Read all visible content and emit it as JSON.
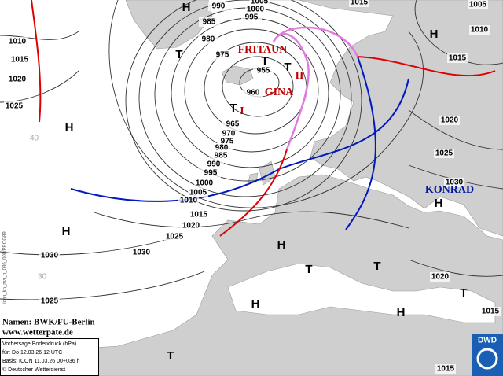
{
  "isobar_labels": [
    990,
    1005,
    1000,
    995,
    985,
    980,
    975,
    955,
    960,
    965,
    970,
    975,
    980,
    985,
    990,
    995,
    1000,
    1005,
    1010,
    1015,
    1020,
    1025,
    1030,
    1030,
    1025,
    1010,
    1015,
    1020,
    1025,
    1015,
    1005,
    1010,
    1015,
    1020,
    1025,
    1030,
    1020,
    1015,
    1015
  ],
  "pressure_centers": [
    "H",
    "H",
    "T",
    "T",
    "T",
    "T",
    "H",
    "H",
    "H",
    "T",
    "T",
    "H",
    "T",
    "H",
    "H",
    "T"
  ],
  "system_names": [
    "FRITAUN",
    "GINA",
    "KONRAD"
  ],
  "front_numbers": [
    "I",
    "II"
  ],
  "latitude_labels": [
    40,
    30
  ],
  "credits": {
    "names": "Namen: BWK/FU-Berlin",
    "website": "www.wetterpate.de"
  },
  "info_box": {
    "title": "Vorhersage Bodendruck (hPa)",
    "valid": "für:  Do  12.03.26  12 UTC",
    "base": "Basis: ICON  11.03.26 00+036 h",
    "copyright": "© Deutscher Wetterdienst"
  },
  "logo": "DWD",
  "side_code": "icon_kb_ma_p_036_000/PPOG89"
}
